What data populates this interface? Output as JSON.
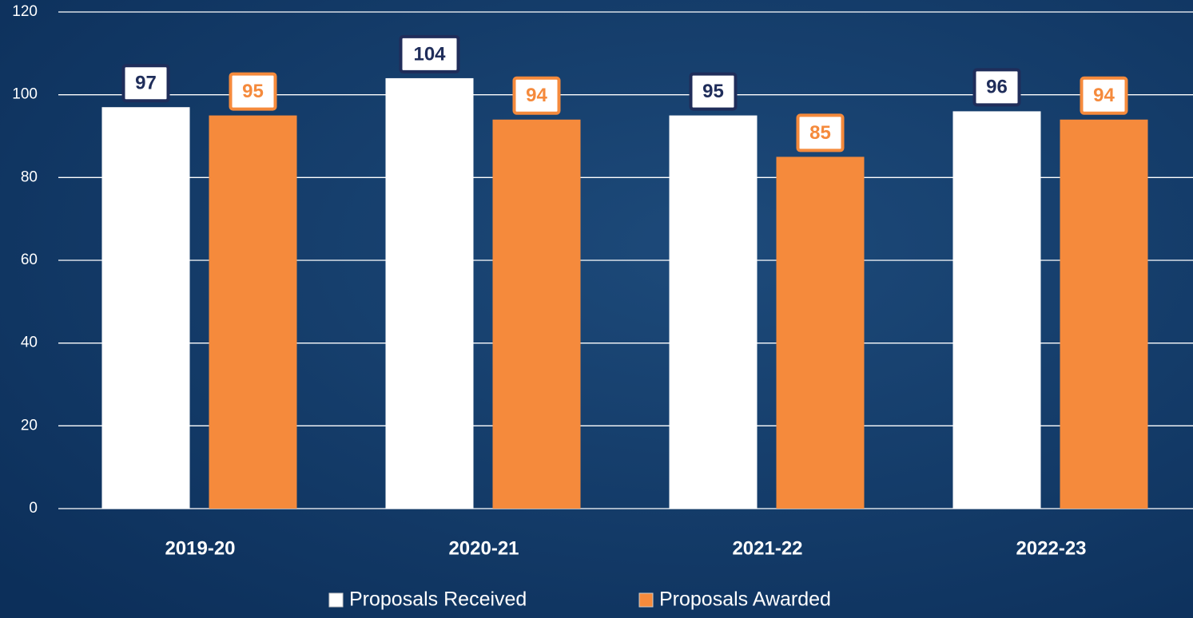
{
  "chart_data": {
    "type": "bar",
    "categories": [
      "2019-20",
      "2020-21",
      "2021-22",
      "2022-23"
    ],
    "series": [
      {
        "name": "Proposals Received",
        "color": "#ffffff",
        "values": [
          97,
          104,
          95,
          96
        ]
      },
      {
        "name": "Proposals Awarded",
        "color": "#f58a3c",
        "values": [
          95,
          94,
          85,
          94
        ]
      }
    ],
    "ylim": [
      0,
      120
    ],
    "yticks": [
      0,
      20,
      40,
      60,
      80,
      100,
      120
    ],
    "grid": true
  }
}
